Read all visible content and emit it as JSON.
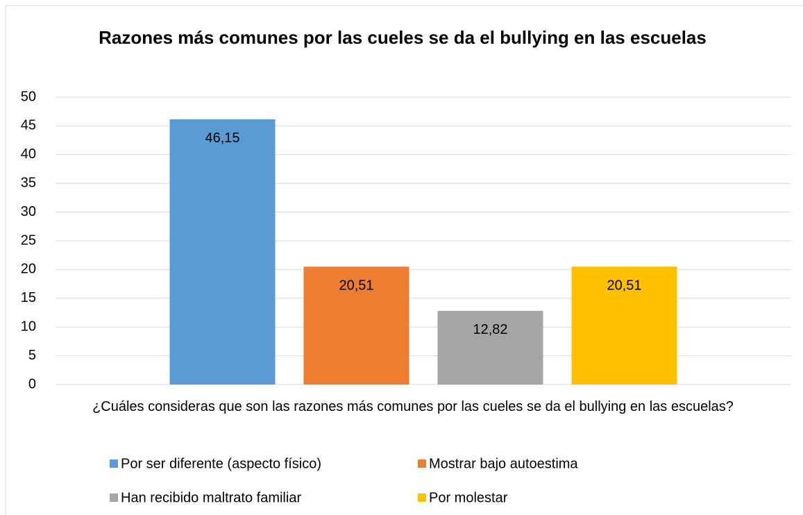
{
  "chart_data": {
    "type": "bar",
    "title": "Razones más comunes por las cueles se da el bullying en las escuelas",
    "categories": [
      "¿Cuáles consideras que son las razones más comunes por las cueles se da el bullying en las escuelas?"
    ],
    "series": [
      {
        "name": "Por ser diferente (aspecto físico)",
        "color": "#5b9bd5",
        "values": [
          46.15
        ],
        "value_labels": [
          "46,15"
        ]
      },
      {
        "name": "Mostrar bajo autoestima",
        "color": "#ed7d31",
        "values": [
          20.51
        ],
        "value_labels": [
          "20,51"
        ]
      },
      {
        "name": "Han recibido maltrato familiar",
        "color": "#a5a5a5",
        "values": [
          12.82
        ],
        "value_labels": [
          "12,82"
        ]
      },
      {
        "name": "Por molestar",
        "color": "#ffc000",
        "values": [
          20.51
        ],
        "value_labels": [
          "20,51"
        ]
      }
    ],
    "ylim": [
      0,
      50
    ],
    "yticks": [
      0,
      5,
      10,
      15,
      20,
      25,
      30,
      35,
      40,
      45,
      50
    ],
    "grid": true,
    "legend": "bottom"
  }
}
